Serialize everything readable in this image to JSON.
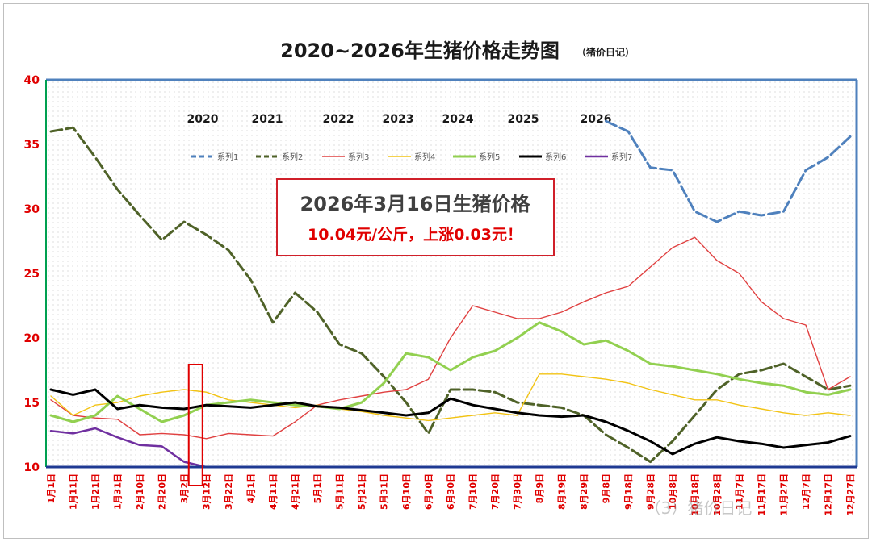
{
  "chart_data": {
    "type": "line",
    "title": "2020~2026年生猪价格走势图",
    "subtitle": "（猪价日记）",
    "ylim": [
      10,
      40
    ],
    "yticks": [
      10,
      15,
      20,
      25,
      30,
      35,
      40
    ],
    "grid": false,
    "legend_position": "top",
    "x_categories": [
      "1月1日",
      "1月11日",
      "1月21日",
      "1月31日",
      "2月10日",
      "2月20日",
      "3月2日",
      "3月12日",
      "3月22日",
      "4月1日",
      "4月11日",
      "4月21日",
      "5月1日",
      "5月11日",
      "5月21日",
      "5月31日",
      "6月10日",
      "6月20日",
      "6月30日",
      "7月10日",
      "7月20日",
      "7月30日",
      "8月9日",
      "8月19日",
      "8月29日",
      "9月8日",
      "9月18日",
      "9月28日",
      "10月8日",
      "10月18日",
      "10月28日",
      "11月7日",
      "11月17日",
      "11月27日",
      "12月7日",
      "12月17日",
      "12月27日"
    ],
    "series": [
      {
        "name": "系列1",
        "color": "#4f81bd",
        "dash": true,
        "width": 3,
        "x": [
          0,
          1,
          2,
          3,
          4,
          5,
          6,
          7,
          8,
          9,
          10,
          11,
          12,
          13,
          14,
          15,
          16,
          17,
          18,
          19,
          20,
          21,
          22,
          23,
          24,
          25,
          26,
          27,
          28,
          29,
          30,
          31,
          32,
          33,
          34,
          35,
          36
        ],
        "y": [
          null,
          null,
          null,
          null,
          null,
          null,
          null,
          null,
          null,
          null,
          null,
          null,
          null,
          null,
          null,
          null,
          null,
          null,
          null,
          null,
          null,
          null,
          null,
          null,
          null,
          36.8,
          36.0,
          33.2,
          33.0,
          29.8,
          29.0,
          29.8,
          29.5,
          29.8,
          33.0,
          34.0,
          35.6
        ]
      },
      {
        "name": "系列2",
        "color": "#4f6228",
        "dash": true,
        "width": 3,
        "x": [
          0,
          1,
          2,
          3,
          4,
          5,
          6,
          7,
          8,
          9,
          10,
          11,
          12,
          13,
          14,
          15,
          16,
          17,
          18,
          19,
          20,
          21,
          22,
          23,
          24,
          25,
          26,
          27,
          28,
          29,
          30,
          31,
          32,
          33,
          34,
          35,
          36
        ],
        "y": [
          36.0,
          36.3,
          34.0,
          31.5,
          29.5,
          27.6,
          29.0,
          28.0,
          26.8,
          24.5,
          21.2,
          23.5,
          22.0,
          19.5,
          18.8,
          17.0,
          15.0,
          12.6,
          16.0,
          16.0,
          15.8,
          15.0,
          14.8,
          14.6,
          14.0,
          12.5,
          11.5,
          10.4,
          12.0,
          14.0,
          16.0,
          17.2,
          17.5,
          18.0,
          17.0,
          16.0,
          16.3
        ]
      },
      {
        "name": "系列3",
        "color": "#e04040",
        "dash": false,
        "width": 1.4,
        "x": [
          0,
          1,
          2,
          3,
          4,
          5,
          6,
          7,
          8,
          9,
          10,
          11,
          12,
          13,
          14,
          15,
          16,
          17,
          18,
          19,
          20,
          21,
          22,
          23,
          24,
          25,
          26,
          27,
          28,
          29,
          30,
          31,
          32,
          33,
          34,
          35,
          36
        ],
        "y": [
          15.2,
          14.0,
          13.8,
          13.7,
          12.5,
          12.6,
          12.5,
          12.2,
          12.6,
          12.5,
          12.4,
          13.5,
          14.8,
          15.2,
          15.5,
          15.8,
          16.0,
          16.8,
          20.0,
          22.5,
          22.0,
          21.5,
          21.5,
          22.0,
          22.8,
          23.5,
          24.0,
          25.5,
          27.0,
          27.8,
          26.0,
          25.0,
          22.8,
          21.5,
          21.0,
          16.0,
          17.0
        ]
      },
      {
        "name": "系列4",
        "color": "#f2c314",
        "dash": false,
        "width": 1.4,
        "x": [
          0,
          1,
          2,
          3,
          4,
          5,
          6,
          7,
          8,
          9,
          10,
          11,
          12,
          13,
          14,
          15,
          16,
          17,
          18,
          19,
          20,
          21,
          22,
          23,
          24,
          25,
          26,
          27,
          28,
          29,
          30,
          31,
          32,
          33,
          34,
          35,
          36
        ],
        "y": [
          15.5,
          14.0,
          14.8,
          15.0,
          15.5,
          15.8,
          16.0,
          15.8,
          15.2,
          15.0,
          14.8,
          14.6,
          14.8,
          14.5,
          14.3,
          14.0,
          13.8,
          13.6,
          13.8,
          14.0,
          14.2,
          14.0,
          17.2,
          17.2,
          17.0,
          16.8,
          16.5,
          16.0,
          15.6,
          15.2,
          15.2,
          14.8,
          14.5,
          14.2,
          14.0,
          14.2,
          14.0
        ]
      },
      {
        "name": "系列5",
        "color": "#92d050",
        "dash": false,
        "width": 3,
        "x": [
          0,
          1,
          2,
          3,
          4,
          5,
          6,
          7,
          8,
          9,
          10,
          11,
          12,
          13,
          14,
          15,
          16,
          17,
          18,
          19,
          20,
          21,
          22,
          23,
          24,
          25,
          26,
          27,
          28,
          29,
          30,
          31,
          32,
          33,
          34,
          35,
          36
        ],
        "y": [
          14.0,
          13.5,
          14.0,
          15.5,
          14.5,
          13.5,
          14.0,
          14.8,
          15.0,
          15.2,
          15.0,
          14.8,
          14.7,
          14.5,
          15.0,
          16.5,
          18.8,
          18.5,
          17.5,
          18.5,
          19.0,
          20.0,
          21.2,
          20.5,
          19.5,
          19.8,
          19.0,
          18.0,
          17.8,
          17.5,
          17.2,
          16.8,
          16.5,
          16.3,
          15.8,
          15.6,
          16.0
        ]
      },
      {
        "name": "系列6",
        "color": "#000000",
        "dash": false,
        "width": 3,
        "x": [
          0,
          1,
          2,
          3,
          4,
          5,
          6,
          7,
          8,
          9,
          10,
          11,
          12,
          13,
          14,
          15,
          16,
          17,
          18,
          19,
          20,
          21,
          22,
          23,
          24,
          25,
          26,
          27,
          28,
          29,
          30,
          31,
          32,
          33,
          34,
          35,
          36
        ],
        "y": [
          16.0,
          15.6,
          16.0,
          14.5,
          14.8,
          14.6,
          14.5,
          14.8,
          14.7,
          14.6,
          14.8,
          15.0,
          14.7,
          14.6,
          14.4,
          14.2,
          14.0,
          14.2,
          15.3,
          14.8,
          14.5,
          14.2,
          14.0,
          13.9,
          14.0,
          13.5,
          12.8,
          12.0,
          11.0,
          11.8,
          12.3,
          12.0,
          11.8,
          11.5,
          11.7,
          11.9,
          12.4
        ]
      },
      {
        "name": "系列7",
        "color": "#7030a0",
        "dash": false,
        "width": 2.5,
        "x": [
          0,
          1,
          2,
          3,
          4,
          5,
          6,
          7
        ],
        "y": [
          12.8,
          12.6,
          13.0,
          12.3,
          11.7,
          11.6,
          10.4,
          10.0
        ]
      }
    ],
    "year_labels": [
      "2020",
      "2021",
      "2022",
      "2023",
      "2024",
      "2025",
      "2026"
    ],
    "highlight_column": 6.5
  },
  "annotation": {
    "line1": "2026年3月16日生猪价格",
    "line2": "10.04元/公斤，上涨0.03元！"
  },
  "watermark": "（3）猪价日记"
}
